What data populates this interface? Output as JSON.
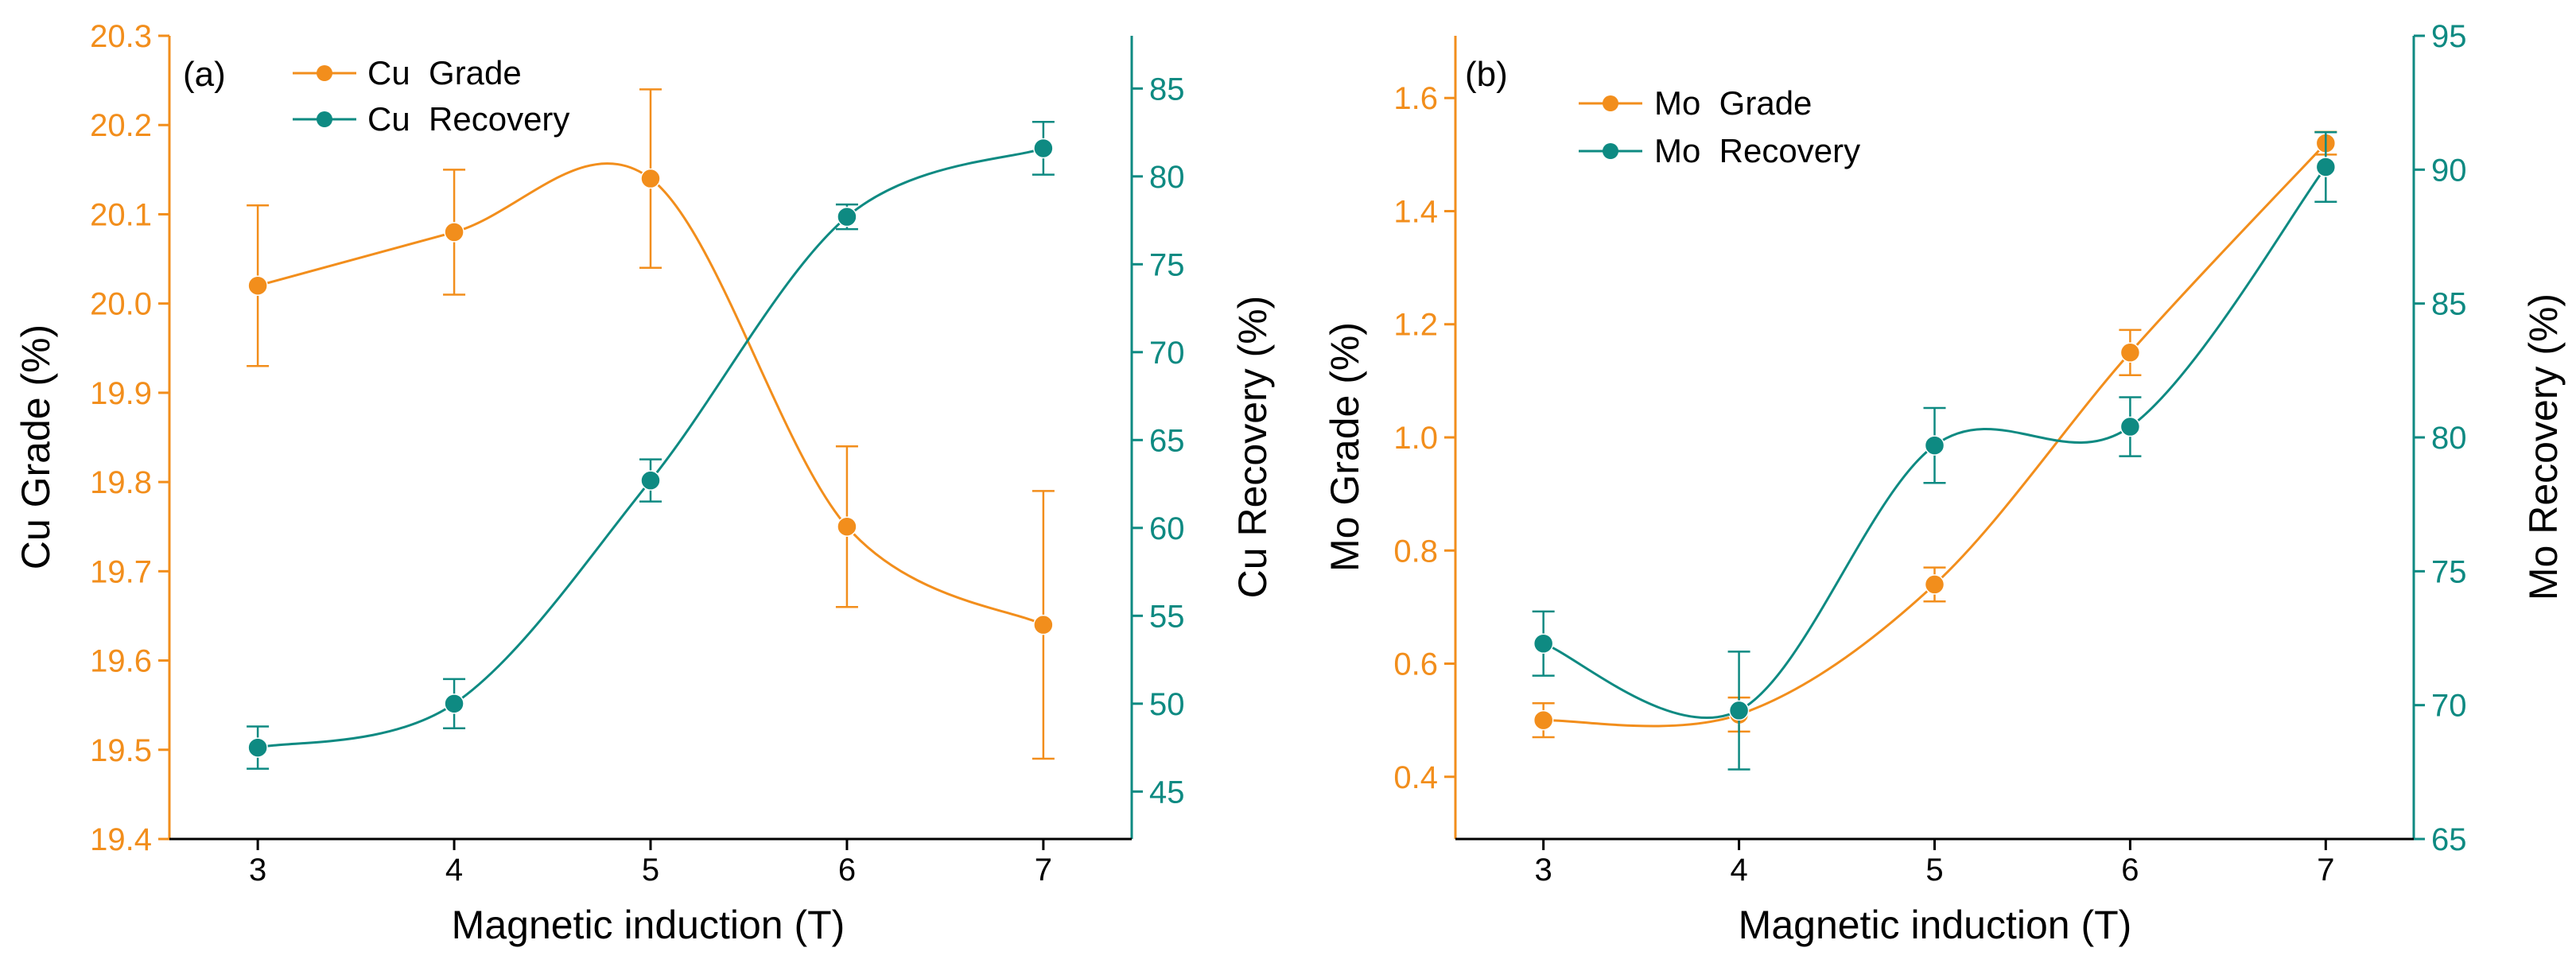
{
  "colors": {
    "orange": "#F28E1C",
    "teal": "#0E8A82",
    "black": "#000000"
  },
  "chart_data": [
    {
      "panel": "(a)",
      "type": "line",
      "xlabel": "Magnetic induction (T)",
      "ylabel_left": "Cu  Grade (%)",
      "ylabel_right": "Cu  Recovery (%)",
      "x": [
        3,
        4,
        5,
        6,
        7
      ],
      "xlim": [
        2.55,
        7.45
      ],
      "ylim_left": [
        19.4,
        20.3
      ],
      "ylim_right": [
        42.3,
        88
      ],
      "yticks_left": [
        "19.4",
        "19.5",
        "19.6",
        "19.7",
        "19.8",
        "19.9",
        "20.0",
        "20.1",
        "20.2",
        "20.3"
      ],
      "yticks_right": [
        "45",
        "50",
        "55",
        "60",
        "65",
        "70",
        "75",
        "80",
        "85"
      ],
      "series": [
        {
          "name": "Cu  Grade",
          "axis": "left",
          "color": "#F28E1C",
          "values": [
            20.02,
            20.08,
            20.14,
            19.75,
            19.64
          ],
          "errors": [
            0.09,
            0.07,
            0.1,
            0.09,
            0.15
          ]
        },
        {
          "name": "Cu  Recovery",
          "axis": "right",
          "color": "#0E8A82",
          "values": [
            47.5,
            50.0,
            62.7,
            77.7,
            81.6
          ],
          "errors": [
            1.2,
            1.4,
            1.2,
            0.7,
            1.5
          ]
        }
      ],
      "legend_position": "top-left"
    },
    {
      "panel": "(b)",
      "type": "line",
      "xlabel": "Magnetic induction (T)",
      "ylabel_left": "Mo  Grade (%)",
      "ylabel_right": "Mo  Recovery (%)",
      "x": [
        3,
        4,
        5,
        6,
        7
      ],
      "xlim": [
        2.55,
        7.45
      ],
      "ylim_left": [
        0.29,
        1.71
      ],
      "ylim_right": [
        65,
        95
      ],
      "yticks_left": [
        "0.4",
        "0.6",
        "0.8",
        "1.0",
        "1.2",
        "1.4",
        "1.6"
      ],
      "yticks_right": [
        "65",
        "70",
        "75",
        "80",
        "85",
        "90",
        "95"
      ],
      "series": [
        {
          "name": "Mo  Grade",
          "axis": "left",
          "color": "#F28E1C",
          "values": [
            0.5,
            0.51,
            0.74,
            1.15,
            1.52
          ],
          "errors": [
            0.03,
            0.03,
            0.03,
            0.04,
            0.02
          ]
        },
        {
          "name": "Mo  Recovery",
          "axis": "right",
          "color": "#0E8A82",
          "values": [
            72.3,
            69.8,
            79.7,
            80.4,
            90.1
          ],
          "errors": [
            1.2,
            2.2,
            1.4,
            1.1,
            1.3
          ]
        }
      ],
      "legend_position": "top-left"
    }
  ]
}
